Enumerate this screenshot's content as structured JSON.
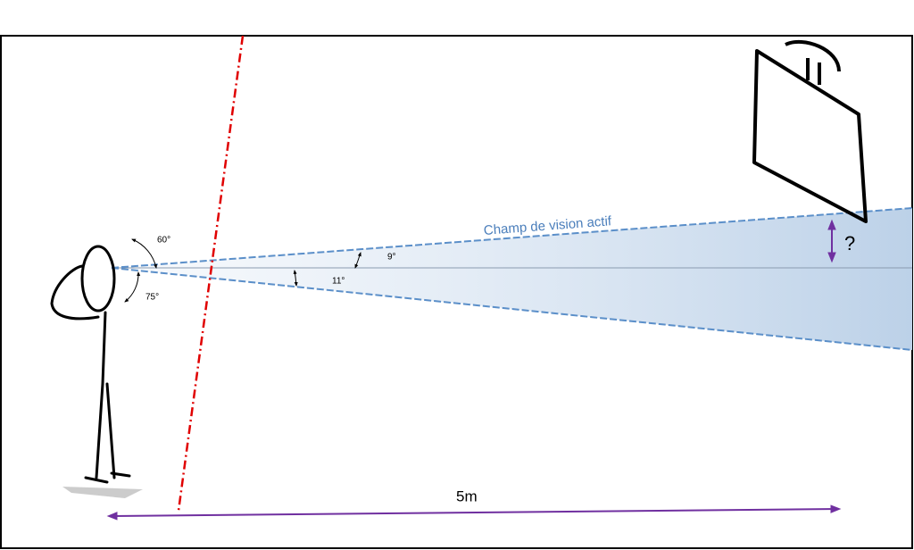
{
  "labels": {
    "field": "Champ de vision actif",
    "angle_up_wide": "60°",
    "angle_down_wide": "75°",
    "angle_up": "9°",
    "angle_down": "11°",
    "unknown": "?",
    "distance": "5m"
  }
}
